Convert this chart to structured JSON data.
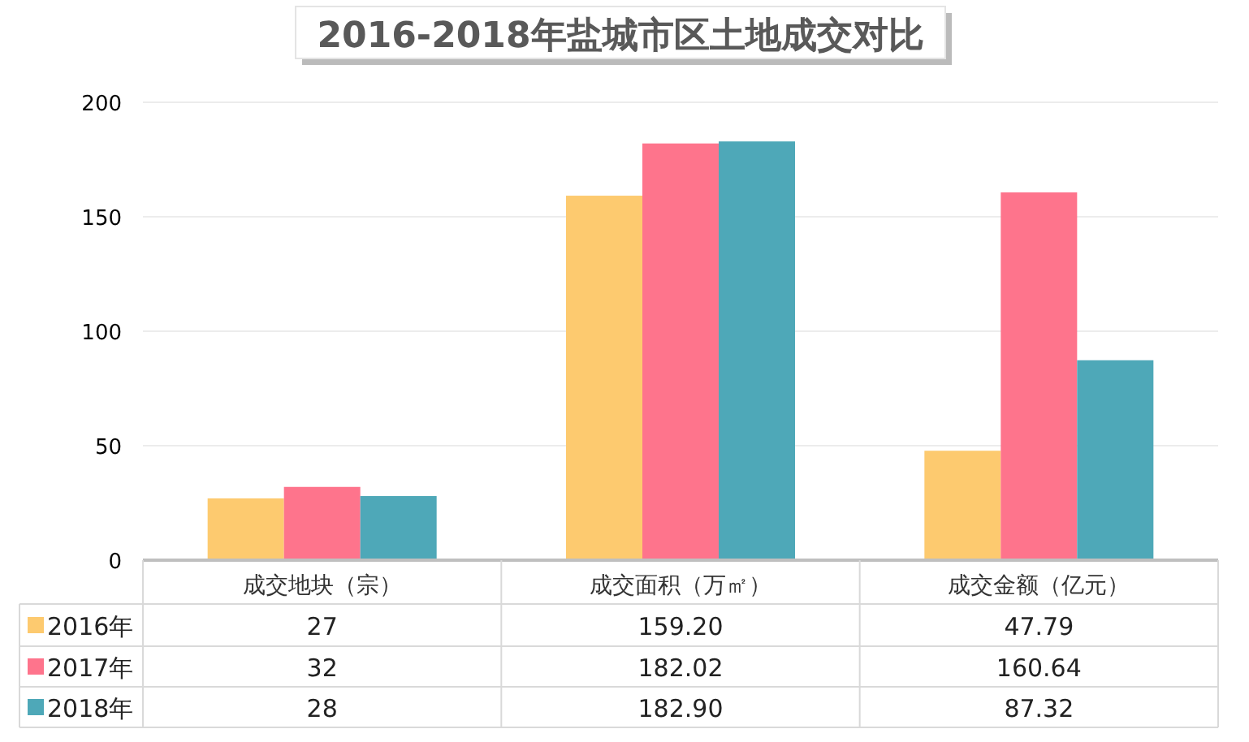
{
  "chart_data": {
    "type": "bar",
    "title": "2016-2018年盐城市区土地成交对比",
    "categories": [
      "成交地块（宗）",
      "成交面积（万㎡）",
      "成交金额（亿元）"
    ],
    "series": [
      {
        "name": "2016年",
        "color": "#fdca6f",
        "values": [
          27,
          159.2,
          47.79
        ],
        "value_labels": [
          "27",
          "159.20",
          "47.79"
        ]
      },
      {
        "name": "2017年",
        "color": "#fe748c",
        "values": [
          32,
          182.02,
          160.64
        ],
        "value_labels": [
          "32",
          "182.02",
          "160.64"
        ]
      },
      {
        "name": "2018年",
        "color": "#4ea8b8",
        "values": [
          28,
          182.9,
          87.32
        ],
        "value_labels": [
          "28",
          "182.90",
          "87.32"
        ]
      }
    ],
    "ylim": [
      0,
      200
    ],
    "yticks": [
      0,
      50,
      100,
      150,
      200
    ],
    "grid": "y",
    "legend": "bottom"
  }
}
